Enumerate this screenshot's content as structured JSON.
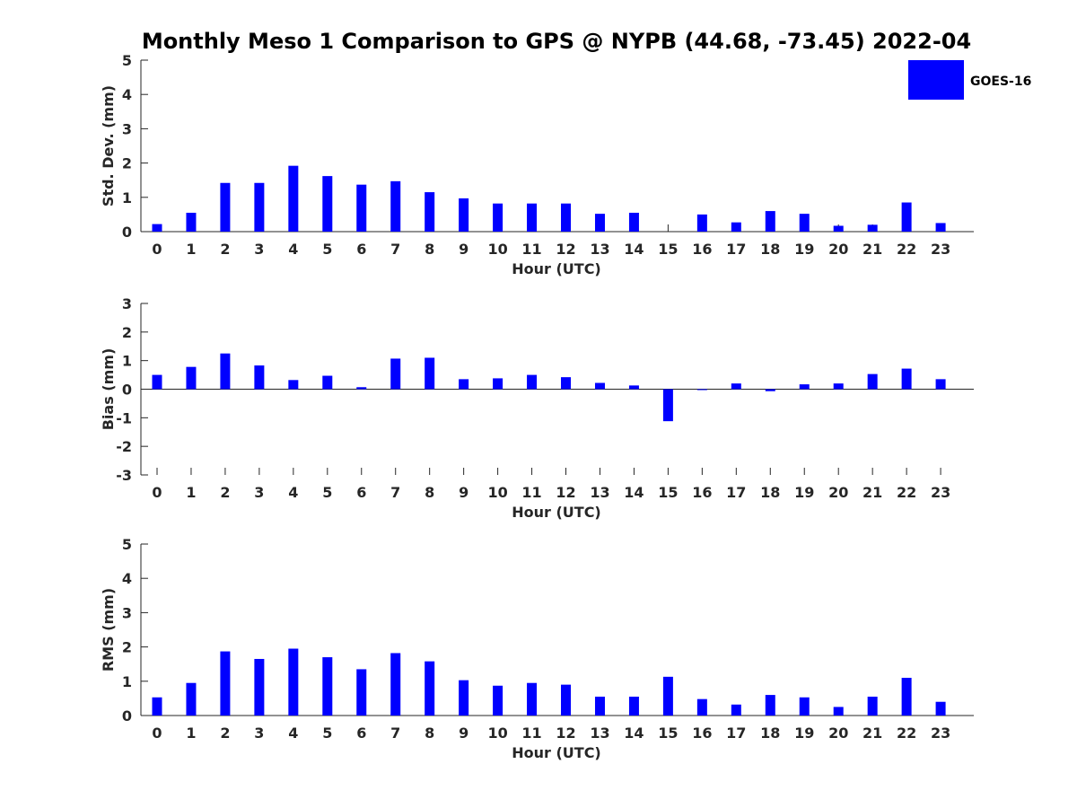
{
  "chart_data": [
    {
      "type": "bar",
      "title": "Monthly Meso 1 Comparison to GPS @ NYPB (44.68, -73.45) 2022-04",
      "xlabel": "Hour (UTC)",
      "ylabel": "Std. Dev. (mm)",
      "ylim": [
        0,
        5
      ],
      "yticks": [
        "0",
        "1",
        "2",
        "3",
        "4",
        "5"
      ],
      "categories": [
        "0",
        "1",
        "2",
        "3",
        "4",
        "5",
        "6",
        "7",
        "8",
        "9",
        "10",
        "11",
        "12",
        "13",
        "14",
        "15",
        "16",
        "17",
        "18",
        "19",
        "20",
        "21",
        "22",
        "23"
      ],
      "series": [
        {
          "name": "GOES-16",
          "values": [
            0.22,
            0.55,
            1.42,
            1.42,
            1.92,
            1.62,
            1.37,
            1.47,
            1.15,
            0.97,
            0.82,
            0.82,
            0.82,
            0.52,
            0.55,
            0.0,
            0.5,
            0.27,
            0.6,
            0.52,
            0.17,
            0.2,
            0.85,
            0.25
          ]
        }
      ],
      "legend": {
        "position": "top-right",
        "entries": [
          "GOES-16"
        ]
      },
      "grid": false,
      "color": "#0000ff"
    },
    {
      "type": "bar",
      "xlabel": "Hour (UTC)",
      "ylabel": "Bias (mm)",
      "ylim": [
        -3,
        3
      ],
      "yticks": [
        "-3",
        "-2",
        "-1",
        "0",
        "1",
        "2",
        "3"
      ],
      "categories": [
        "0",
        "1",
        "2",
        "3",
        "4",
        "5",
        "6",
        "7",
        "8",
        "9",
        "10",
        "11",
        "12",
        "13",
        "14",
        "15",
        "16",
        "17",
        "18",
        "19",
        "20",
        "21",
        "22",
        "23"
      ],
      "series": [
        {
          "name": "GOES-16",
          "values": [
            0.5,
            0.78,
            1.25,
            0.83,
            0.32,
            0.47,
            0.07,
            1.07,
            1.1,
            0.35,
            0.38,
            0.5,
            0.42,
            0.22,
            0.13,
            -1.12,
            -0.03,
            0.2,
            -0.07,
            0.17,
            0.2,
            0.53,
            0.72,
            0.35
          ]
        }
      ],
      "grid": false,
      "color": "#0000ff"
    },
    {
      "type": "bar",
      "xlabel": "Hour (UTC)",
      "ylabel": "RMS (mm)",
      "ylim": [
        0,
        5
      ],
      "yticks": [
        "0",
        "1",
        "2",
        "3",
        "4",
        "5"
      ],
      "categories": [
        "0",
        "1",
        "2",
        "3",
        "4",
        "5",
        "6",
        "7",
        "8",
        "9",
        "10",
        "11",
        "12",
        "13",
        "14",
        "15",
        "16",
        "17",
        "18",
        "19",
        "20",
        "21",
        "22",
        "23"
      ],
      "series": [
        {
          "name": "GOES-16",
          "values": [
            0.53,
            0.95,
            1.87,
            1.65,
            1.95,
            1.7,
            1.35,
            1.82,
            1.58,
            1.03,
            0.87,
            0.95,
            0.9,
            0.55,
            0.55,
            1.13,
            0.48,
            0.32,
            0.6,
            0.53,
            0.25,
            0.55,
            1.1,
            0.4
          ]
        }
      ],
      "grid": false,
      "color": "#0000ff"
    }
  ]
}
